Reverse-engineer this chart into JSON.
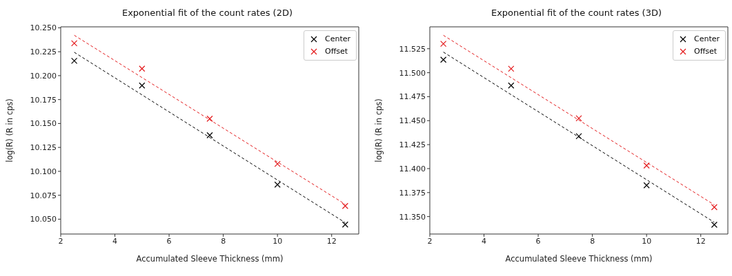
{
  "chart_data": [
    {
      "type": "scatter",
      "title": "Exponential fit of the count rates (2D)",
      "xlabel": "Accumulated Sleeve Thickness (mm)",
      "ylabel": "log(R) (R in cps)",
      "xlim": [
        2,
        13
      ],
      "xticks": [
        2,
        4,
        6,
        8,
        10,
        12
      ],
      "ylim": [
        10.0345,
        10.251
      ],
      "yticks": [
        {
          "value": 10.05,
          "label": "10.050"
        },
        {
          "value": 10.075,
          "label": "10.075"
        },
        {
          "value": 10.1,
          "label": "10.100"
        },
        {
          "value": 10.125,
          "label": "10.125"
        },
        {
          "value": 10.15,
          "label": "10.150"
        },
        {
          "value": 10.175,
          "label": "10.175"
        },
        {
          "value": 10.2,
          "label": "10.200"
        },
        {
          "value": 10.225,
          "label": "10.225"
        },
        {
          "value": 10.25,
          "label": "10.250"
        }
      ],
      "legend": "top right",
      "marker": "cross",
      "x": [
        2.5,
        5,
        7.5,
        10,
        12.5
      ],
      "series": [
        {
          "name": "Center",
          "color": "#000000",
          "values": [
            10.2155,
            10.1897,
            10.1377,
            10.0861,
            10.0444
          ]
        },
        {
          "name": "Offset",
          "color": "#e41a1c",
          "values": [
            10.2338,
            10.2073,
            10.155,
            10.1078,
            10.0638
          ]
        },
        {
          "type": "line",
          "line_style": "dashed",
          "marker": "none",
          "color": "#000000",
          "values": [
            10.2244,
            10.1799,
            10.1354,
            10.0909,
            10.0464
          ]
        },
        {
          "type": "line",
          "line_style": "dashed",
          "marker": "none",
          "color": "#e41a1c",
          "values": [
            10.2422,
            10.198,
            10.1539,
            10.1097,
            10.0656
          ]
        }
      ]
    },
    {
      "type": "scatter",
      "title": "Exponential fit of the count rates (3D)",
      "xlabel": "Accumulated Sleeve Thickness (mm)",
      "ylabel": "log(R) (R in cps)",
      "xlim": [
        2,
        13
      ],
      "xticks": [
        2,
        4,
        6,
        8,
        10,
        12
      ],
      "ylim": [
        11.3318,
        11.5478
      ],
      "yticks": [
        {
          "value": 11.35,
          "label": "11.350"
        },
        {
          "value": 11.375,
          "label": "11.375"
        },
        {
          "value": 11.4,
          "label": "11.400"
        },
        {
          "value": 11.425,
          "label": "11.425"
        },
        {
          "value": 11.45,
          "label": "11.450"
        },
        {
          "value": 11.475,
          "label": "11.475"
        },
        {
          "value": 11.5,
          "label": "11.500"
        },
        {
          "value": 11.525,
          "label": "11.525"
        }
      ],
      "legend": "top right",
      "marker": "cross",
      "x": [
        2.5,
        5,
        7.5,
        10,
        12.5
      ],
      "series": [
        {
          "name": "Center",
          "color": "#000000",
          "values": [
            11.5135,
            11.4866,
            11.4338,
            11.3826,
            11.3415
          ]
        },
        {
          "name": "Offset",
          "color": "#e41a1c",
          "values": [
            11.5301,
            11.5041,
            11.4525,
            11.4032,
            11.3598
          ]
        },
        {
          "type": "line",
          "line_style": "dashed",
          "marker": "none",
          "color": "#000000",
          "values": [
            11.5215,
            11.4771,
            11.4328,
            11.3884,
            11.344
          ]
        },
        {
          "type": "line",
          "line_style": "dashed",
          "marker": "none",
          "color": "#e41a1c",
          "values": [
            11.539,
            11.4948,
            11.4506,
            11.4064,
            11.3622
          ]
        }
      ]
    }
  ]
}
